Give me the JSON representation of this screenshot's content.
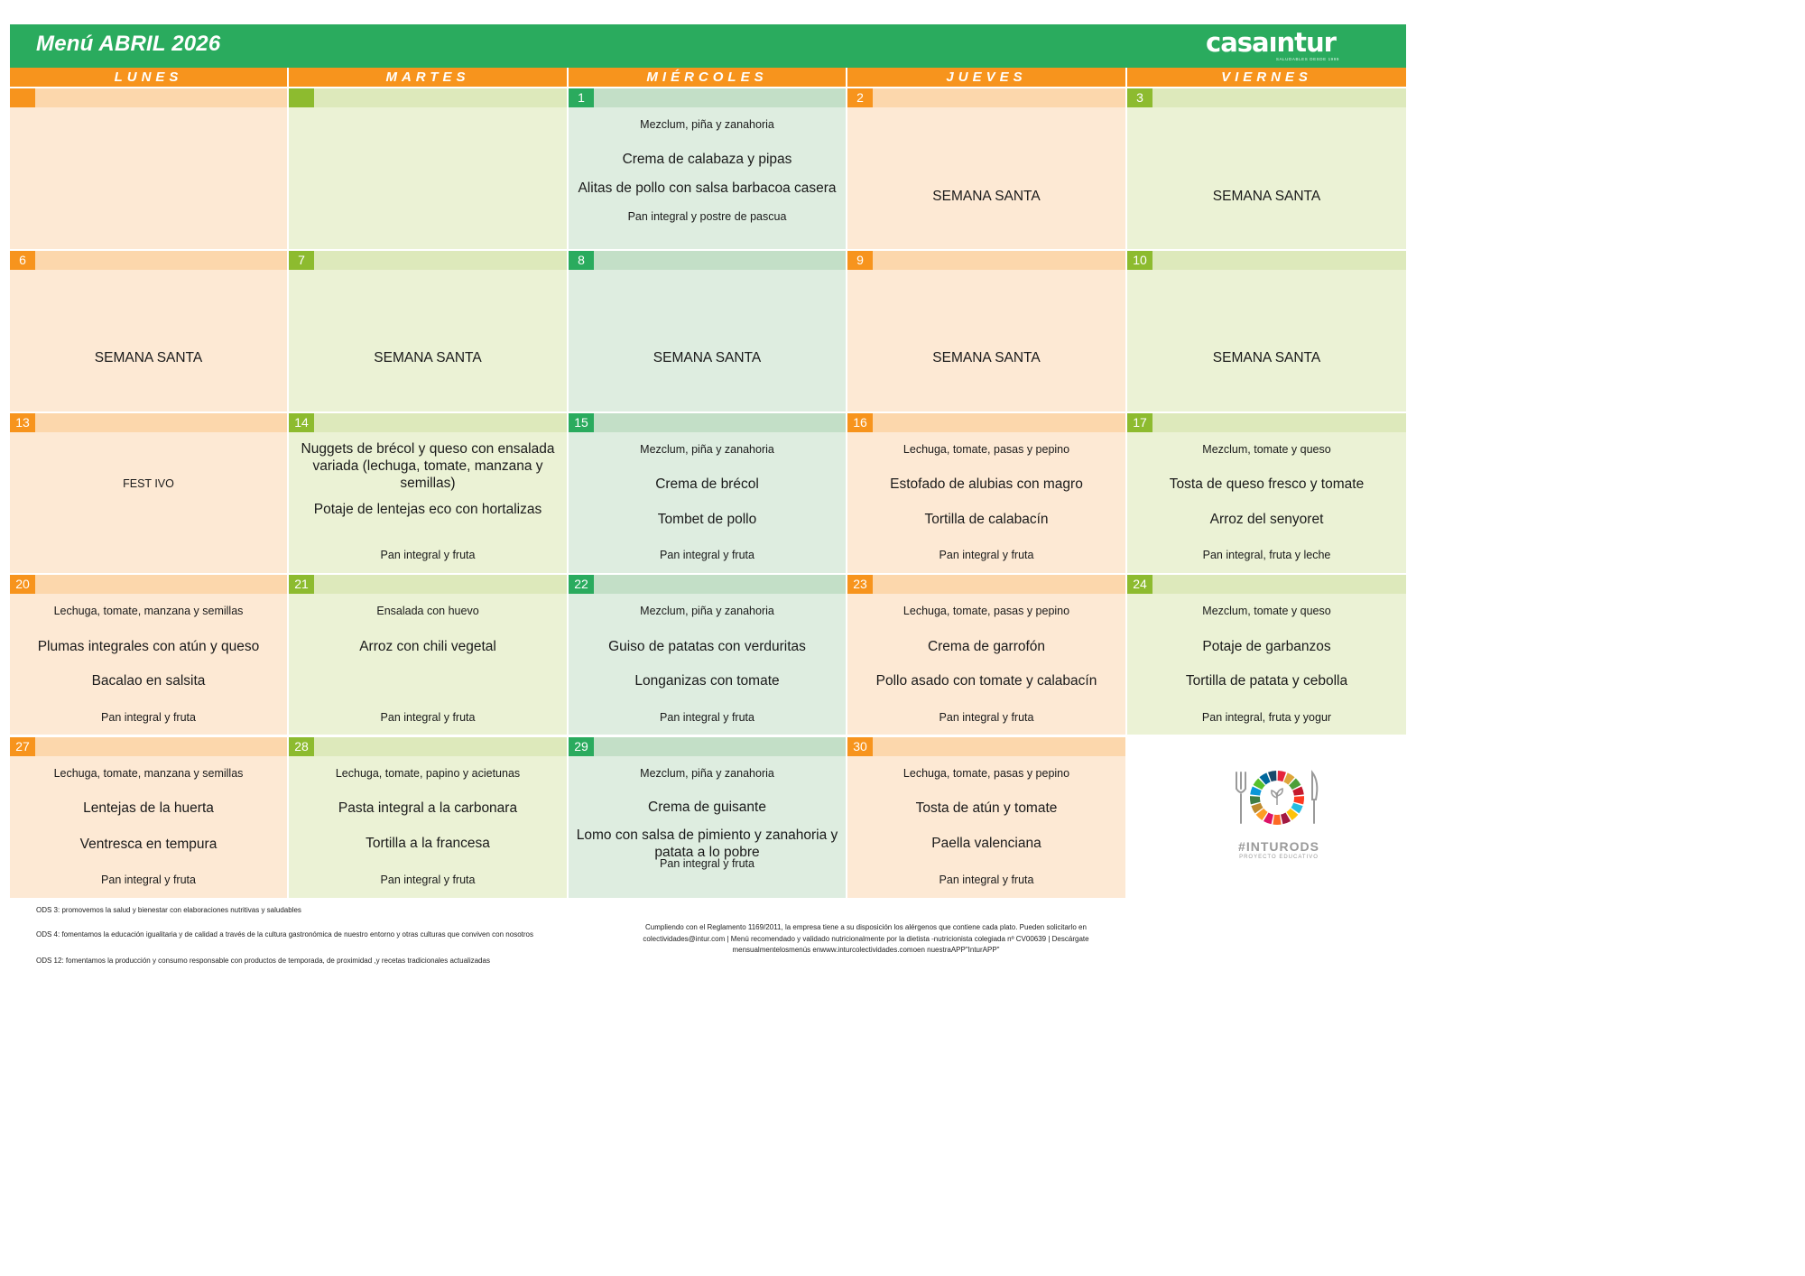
{
  "header": {
    "title": "Menú ABRIL 2026",
    "logo_text": "casaıntur",
    "logo_tagline": "SALUDABLES DESDE 1999"
  },
  "days": [
    "LUNES",
    "MARTES",
    "MIÉRCOLES",
    "JUEVES",
    "VIERNES"
  ],
  "week1": {
    "mon": {
      "num": ""
    },
    "tue": {
      "num": ""
    },
    "wed": {
      "num": "1",
      "first": "Mezclum, piña y zanahoria",
      "second": "Crema de calabaza y pipas",
      "main": "Alitas de pollo con salsa barbacoa casera",
      "extra": "Pan integral y postre de pascua"
    },
    "thu": {
      "num": "2",
      "text": "SEMANA SANTA"
    },
    "fri": {
      "num": "3",
      "text": "SEMANA SANTA"
    }
  },
  "week2": {
    "mon": {
      "num": "6",
      "text": "SEMANA SANTA"
    },
    "tue": {
      "num": "7",
      "text": "SEMANA SANTA"
    },
    "wed": {
      "num": "8",
      "text": "SEMANA SANTA"
    },
    "thu": {
      "num": "9",
      "text": "SEMANA SANTA"
    },
    "fri": {
      "num": "10",
      "text": "SEMANA SANTA"
    }
  },
  "week3": {
    "mon": {
      "num": "13",
      "text": "FEST IVO"
    },
    "tue": {
      "num": "14",
      "first": "Nuggets de brécol y queso con ensalada variada (lechuga, tomate, manzana y semillas)",
      "second": "Potaje de lentejas eco con hortalizas",
      "extra": "Pan integral y fruta"
    },
    "wed": {
      "num": "15",
      "first": "Mezclum, piña y zanahoria",
      "second": "Crema de brécol",
      "main": "Tombet de pollo",
      "extra": "Pan integral y fruta"
    },
    "thu": {
      "num": "16",
      "first": "Lechuga, tomate, pasas y pepino",
      "second": "Estofado de alubias con magro",
      "main": "Tortilla de calabacín",
      "extra": "Pan integral y fruta"
    },
    "fri": {
      "num": "17",
      "first": "Mezclum, tomate y queso",
      "second": "Tosta de queso fresco y tomate",
      "main": "Arroz del senyoret",
      "extra": "Pan integral, fruta y leche"
    }
  },
  "week4": {
    "mon": {
      "num": "20",
      "first": "Lechuga, tomate, manzana y semillas",
      "second": "Plumas integrales con atún y queso",
      "main": "Bacalao en salsita",
      "extra": "Pan integral y fruta"
    },
    "tue": {
      "num": "21",
      "first": "Ensalada con huevo",
      "second": "Arroz con chili vegetal",
      "extra": "Pan integral y fruta"
    },
    "wed": {
      "num": "22",
      "first": "Mezclum, piña y zanahoria",
      "second": "Guiso de patatas con verduritas",
      "main": "Longanizas con tomate",
      "extra": "Pan integral y fruta"
    },
    "thu": {
      "num": "23",
      "first": "Lechuga, tomate, pasas y pepino",
      "second": "Crema de garrofón",
      "main": "Pollo asado con tomate y calabacín",
      "extra": "Pan integral y fruta"
    },
    "fri": {
      "num": "24",
      "first": "Mezclum, tomate y queso",
      "second": "Potaje de garbanzos",
      "main": "Tortilla de patata y cebolla",
      "extra": "Pan integral, fruta y yogur"
    }
  },
  "week5": {
    "mon": {
      "num": "27",
      "first": "Lechuga, tomate, manzana y semillas",
      "second": "Lentejas de la huerta",
      "main": "Ventresca en tempura",
      "extra": "Pan integral y fruta"
    },
    "tue": {
      "num": "28",
      "first": "Lechuga, tomate, papino y acietunas",
      "second": "Pasta integral a la carbonara",
      "main": "Tortilla a la francesa",
      "extra": "Pan integral y fruta"
    },
    "wed": {
      "num": "29",
      "first": "Mezclum, piña y zanahoria",
      "second": "Crema de guisante",
      "main": "Lomo con salsa de pimiento y zanahoria y patata a lo pobre",
      "extra": "Pan integral y fruta"
    },
    "thu": {
      "num": "30",
      "first": "Lechuga, tomate, pasas y pepino",
      "second": "Tosta de atún y tomate",
      "main": "Paella valenciana",
      "extra": "Pan integral y fruta"
    }
  },
  "ods_logo": {
    "tag": "#INTURODS",
    "subtag": "PROYECTO EDUCATIVO",
    "wheel_colors": [
      "#e5243b",
      "#dda63a",
      "#4c9f38",
      "#c5192d",
      "#ff3a21",
      "#26bde2",
      "#fcc30b",
      "#a21942",
      "#fd6925",
      "#dd1367",
      "#fd9d24",
      "#bf8b2e",
      "#3f7e44",
      "#0a97d9",
      "#56c02b",
      "#00689d",
      "#19486a"
    ]
  },
  "footer": {
    "ods3": "ODS 3: promovemos la salud y bienestar con elaboraciones nutritivas y saludables",
    "ods4": "ODS 4: fomentamos la educación igualitaria y de calidad a través de la cultura gastronómica de nuestro entorno y otras culturas que conviven con nosotros",
    "ods12": "ODS 12: fomentamos la producción y consumo responsable con productos de temporada, de proximidad ,y recetas tradicionales actualizadas",
    "legal_line1": "Cumpliendo con el Reglamento 1169/2011, la empresa tiene a su disposición los alérgenos que contiene cada plato. Pueden solicitarlo en",
    "legal_line2": "colectividades@intur.com | Menú recomendado y validado nutricionalmente por la dietista -nutricionista colegiada nº CV00639 | Descárgate",
    "legal_line3": "mensualmentelosmenús enwww.inturcolectividades.comoen nuestraAPP\"InturAPP\""
  }
}
